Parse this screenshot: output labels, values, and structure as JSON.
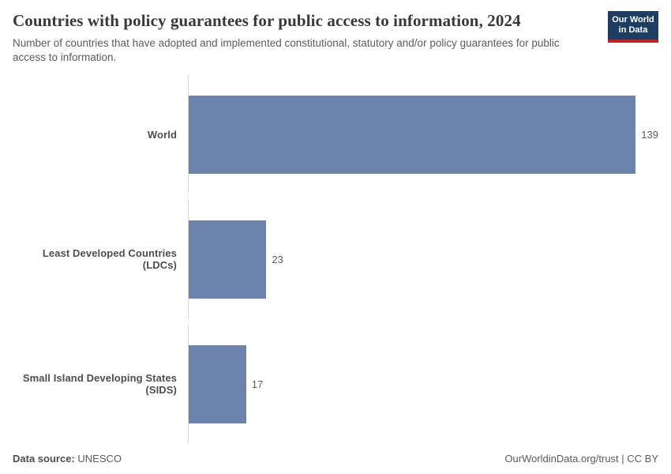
{
  "header": {
    "title": "Countries with policy guarantees for public access to information, 2024",
    "subtitle": "Number of countries that have adopted and implemented constitutional, statutory and/or policy guarantees for public access to information.",
    "logo": {
      "line1": "Our World",
      "line2": "in Data"
    }
  },
  "chart_data": {
    "type": "bar",
    "orientation": "horizontal",
    "title": "Countries with policy guarantees for public access to information, 2024",
    "categories": [
      "World",
      "Least Developed Countries (LDCs)",
      "Small Island Developing States (SIDS)"
    ],
    "values": [
      139,
      23,
      17
    ],
    "xlabel": "",
    "ylabel": "",
    "xlim": [
      0,
      139
    ],
    "grid": false,
    "legend": "none",
    "bar_color": "#6c84ad",
    "value_labels": [
      "139",
      "23",
      "17"
    ]
  },
  "footer": {
    "source_label": "Data source:",
    "source_value": "UNESCO",
    "right_text": "OurWorldinData.org/trust | CC BY"
  }
}
